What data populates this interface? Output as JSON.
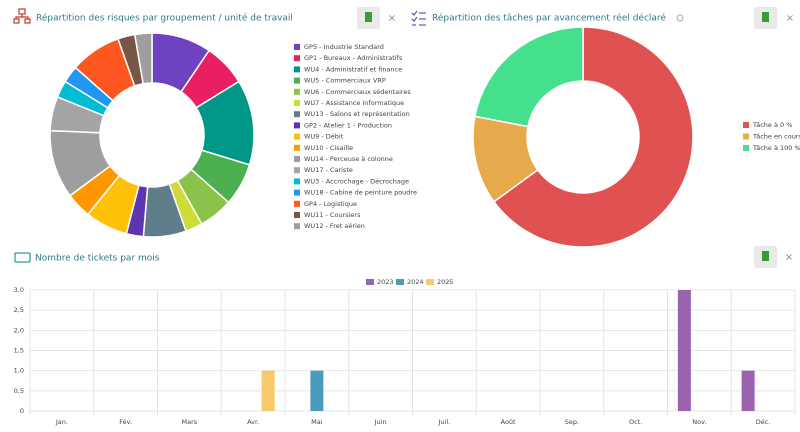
{
  "chart_data": [
    {
      "type": "doughnut",
      "title": "Répartition des risques par groupement / unité de travail",
      "categories": [
        "GP5 - Industrie Standard",
        "GP1 - Bureaux - Administratifs",
        "WU4 - Administratif et finance",
        "WU5 - Commerciaux VRP",
        "WU6 - Commerciaux sédentaires",
        "WU7 - Assistance informatique",
        "WU13 - Salons et représentation",
        "GP2 - Atelier 1 - Production",
        "WU9 - Débit",
        "WU10 - Cisaille",
        "WU14 - Perceuse à colonne",
        "WU17 - Cariste",
        "WU3 - Accrochage - Décrochage",
        "WU18 - Cabine de peinture poudre",
        "GP4 - Logistique",
        "WU11 - Coursiers",
        "WU12 - Fret aérien"
      ],
      "values": [
        7,
        5,
        10,
        5,
        4,
        2,
        5,
        2,
        5,
        3,
        8,
        4,
        2,
        2,
        6,
        2,
        2
      ],
      "colors": [
        "#6f42c1",
        "#e91e63",
        "#009688",
        "#4caf50",
        "#8bc34a",
        "#cddc39",
        "#607d8b",
        "#5e35b1",
        "#ffc107",
        "#ff9800",
        "#9e9e9e",
        "#a4a4a4",
        "#00bcd4",
        "#2196f3",
        "#ff5722",
        "#795548",
        "#9e9e9e"
      ]
    },
    {
      "type": "doughnut",
      "title": "Répartition des tâches par avancement réel déclaré",
      "categories": [
        "Tâche à 0 %",
        "Tâche en cours",
        "Tâche à 100 %"
      ],
      "values": [
        65,
        13,
        22
      ],
      "colors": [
        "#e05252",
        "#e8a84c",
        "#44e08c"
      ]
    },
    {
      "type": "bar",
      "title": "Nombre de tickets par mois",
      "categories": [
        "Jan.",
        "Fév.",
        "Mars",
        "Avr.",
        "Mai",
        "Juin",
        "Juil.",
        "Août",
        "Sep.",
        "Oct.",
        "Nov.",
        "Déc."
      ],
      "series": [
        {
          "name": "2023",
          "color": "#9b62b0",
          "values": [
            0,
            0,
            0,
            0,
            0,
            0,
            0,
            0,
            0,
            0,
            3,
            1
          ]
        },
        {
          "name": "2024",
          "color": "#4a9bbd",
          "values": [
            0,
            0,
            0,
            0,
            1,
            0,
            0,
            0,
            0,
            0,
            0,
            0
          ]
        },
        {
          "name": "2025",
          "color": "#f7c96a",
          "values": [
            0,
            0,
            0,
            1,
            0,
            0,
            0,
            0,
            0,
            0,
            0,
            0
          ]
        }
      ],
      "ylim": [
        0,
        3
      ],
      "yticks": [
        0,
        {
          "value": 0.5,
          "label": "0,5"
        },
        {
          "value": 1,
          "label": "1,0"
        },
        {
          "value": 1.5,
          "label": "1,5"
        },
        {
          "value": 2,
          "label": "2,0"
        },
        {
          "value": 2.5,
          "label": "2,5"
        },
        {
          "value": 3,
          "label": "3,0"
        }
      ],
      "grid": true
    }
  ]
}
